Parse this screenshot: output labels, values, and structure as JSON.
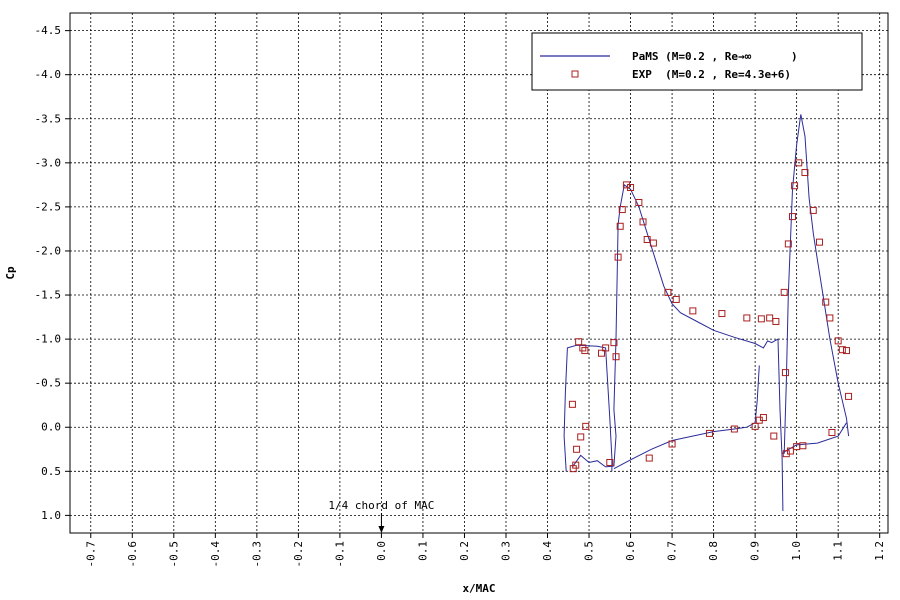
{
  "chart_data": {
    "type": "scatter",
    "xlabel": "x/MAC",
    "ylabel": "Cp",
    "xlim": [
      -0.75,
      1.22
    ],
    "ylim": [
      1.2,
      -4.7
    ],
    "y_axis_inverted": true,
    "grid": true,
    "legend_position": "top-right",
    "x_ticks": [
      -0.7,
      -0.6,
      -0.5,
      -0.4,
      -0.3,
      -0.2,
      -0.1,
      0.0,
      0.1,
      0.2,
      0.3,
      0.4,
      0.5,
      0.6,
      0.7,
      0.8,
      0.9,
      1.0,
      1.1,
      1.2
    ],
    "x_tick_labels": [
      "-0.7",
      "-0.6",
      "-0.5",
      "-0.4",
      "-0.3",
      "-0.2",
      "-0.1",
      "0.0",
      "0.1",
      "0.2",
      "0.3",
      "0.4",
      "0.5",
      "0.6",
      "0.7",
      "0.8",
      "0.9",
      "1.0",
      "1.1",
      "1.2"
    ],
    "y_ticks": [
      -4.5,
      -4.0,
      -3.5,
      -3.0,
      -2.5,
      -2.0,
      -1.5,
      -1.0,
      -0.5,
      0.0,
      0.5,
      1.0
    ],
    "y_tick_labels": [
      "-4.5",
      "-4.0",
      "-3.5",
      "-3.0",
      "-2.5",
      "-2.0",
      "-1.5",
      "-1.0",
      "-0.5",
      "0.0",
      "0.5",
      "1.0"
    ],
    "annotation": {
      "text": "1/4 chord of MAC",
      "x": 0.0,
      "y": 1.2
    },
    "series": [
      {
        "name": "PaMS (M=0.2 , Re→∞      )",
        "kind": "line",
        "color": "#2b2b9a",
        "segments": [
          [
            [
              0.445,
              0.5
            ],
            [
              0.44,
              0.1
            ],
            [
              0.443,
              -0.4
            ],
            [
              0.448,
              -0.9
            ],
            [
              0.47,
              -0.93
            ],
            [
              0.52,
              -0.92
            ],
            [
              0.54,
              -0.9
            ],
            [
              0.545,
              -0.5
            ],
            [
              0.55,
              -0.1
            ],
            [
              0.555,
              0.35
            ],
            [
              0.555,
              0.5
            ]
          ],
          [
            [
              0.46,
              0.45
            ],
            [
              0.48,
              0.32
            ],
            [
              0.5,
              0.4
            ],
            [
              0.52,
              0.38
            ],
            [
              0.54,
              0.45
            ],
            [
              0.56,
              0.44
            ],
            [
              0.565,
              0.1
            ],
            [
              0.56,
              -0.2
            ],
            [
              0.565,
              -1.0
            ],
            [
              0.57,
              -2.3
            ],
            [
              0.575,
              -2.5
            ],
            [
              0.585,
              -2.75
            ],
            [
              0.6,
              -2.7
            ],
            [
              0.62,
              -2.5
            ],
            [
              0.64,
              -2.2
            ],
            [
              0.66,
              -1.9
            ],
            [
              0.68,
              -1.6
            ],
            [
              0.7,
              -1.4
            ],
            [
              0.72,
              -1.3
            ],
            [
              0.76,
              -1.2
            ],
            [
              0.8,
              -1.1
            ],
            [
              0.85,
              -1.02
            ],
            [
              0.9,
              -0.95
            ],
            [
              0.92,
              -0.9
            ],
            [
              0.93,
              -0.98
            ],
            [
              0.94,
              -0.96
            ],
            [
              0.955,
              -1.0
            ],
            [
              0.96,
              -0.2
            ],
            [
              0.965,
              0.35
            ],
            [
              0.967,
              0.95
            ]
          ],
          [
            [
              0.56,
              0.47
            ],
            [
              0.6,
              0.37
            ],
            [
              0.65,
              0.25
            ],
            [
              0.7,
              0.15
            ],
            [
              0.8,
              0.05
            ],
            [
              0.85,
              0.02
            ],
            [
              0.88,
              0.0
            ],
            [
              0.9,
              -0.05
            ],
            [
              0.905,
              -0.3
            ],
            [
              0.91,
              -0.7
            ]
          ],
          [
            [
              0.97,
              0.3
            ],
            [
              0.975,
              -0.5
            ],
            [
              0.98,
              -1.5
            ],
            [
              0.985,
              -2.1
            ],
            [
              0.99,
              -2.7
            ],
            [
              1.0,
              -3.2
            ],
            [
              1.01,
              -3.55
            ],
            [
              1.02,
              -3.3
            ],
            [
              1.03,
              -2.6
            ],
            [
              1.04,
              -2.2
            ],
            [
              1.05,
              -1.9
            ],
            [
              1.06,
              -1.6
            ],
            [
              1.08,
              -1.0
            ],
            [
              1.1,
              -0.5
            ],
            [
              1.12,
              -0.1
            ],
            [
              1.125,
              0.1
            ]
          ],
          [
            [
              0.965,
              0.3
            ],
            [
              0.97,
              0.28
            ],
            [
              1.0,
              0.2
            ],
            [
              1.05,
              0.18
            ],
            [
              1.1,
              0.1
            ],
            [
              1.12,
              -0.05
            ]
          ]
        ]
      },
      {
        "name": "EXP  (M=0.2 , Re=4.3e+6)",
        "kind": "marker",
        "color": "#aa1f1f",
        "points": [
          [
            0.46,
            -0.26
          ],
          [
            0.462,
            0.47
          ],
          [
            0.468,
            0.43
          ],
          [
            0.47,
            0.25
          ],
          [
            0.475,
            -0.97
          ],
          [
            0.48,
            0.11
          ],
          [
            0.485,
            -0.9
          ],
          [
            0.49,
            -0.87
          ],
          [
            0.492,
            -0.01
          ],
          [
            0.53,
            -0.84
          ],
          [
            0.54,
            -0.9
          ],
          [
            0.55,
            0.4
          ],
          [
            0.56,
            -0.96
          ],
          [
            0.565,
            -0.8
          ],
          [
            0.57,
            -1.93
          ],
          [
            0.575,
            -2.28
          ],
          [
            0.58,
            -2.47
          ],
          [
            0.59,
            -2.75
          ],
          [
            0.6,
            -2.72
          ],
          [
            0.62,
            -2.55
          ],
          [
            0.63,
            -2.33
          ],
          [
            0.64,
            -2.13
          ],
          [
            0.645,
            0.35
          ],
          [
            0.655,
            -2.09
          ],
          [
            0.69,
            -1.53
          ],
          [
            0.7,
            0.19
          ],
          [
            0.71,
            -1.45
          ],
          [
            0.75,
            -1.32
          ],
          [
            0.79,
            0.07
          ],
          [
            0.82,
            -1.29
          ],
          [
            0.85,
            0.02
          ],
          [
            0.88,
            -1.24
          ],
          [
            0.9,
            -0.01
          ],
          [
            0.91,
            -0.08
          ],
          [
            0.915,
            -1.23
          ],
          [
            0.92,
            -0.11
          ],
          [
            0.935,
            -1.24
          ],
          [
            0.945,
            0.1
          ],
          [
            0.95,
            -1.2
          ],
          [
            0.97,
            -1.53
          ],
          [
            0.973,
            -0.62
          ],
          [
            0.975,
            0.3
          ],
          [
            0.98,
            -2.08
          ],
          [
            0.985,
            0.27
          ],
          [
            0.99,
            -2.39
          ],
          [
            0.995,
            -2.74
          ],
          [
            1.0,
            0.22
          ],
          [
            1.005,
            -3.0
          ],
          [
            1.015,
            0.21
          ],
          [
            1.02,
            -2.89
          ],
          [
            1.04,
            -2.46
          ],
          [
            1.055,
            -2.1
          ],
          [
            1.07,
            -1.42
          ],
          [
            1.08,
            -1.24
          ],
          [
            1.085,
            0.06
          ],
          [
            1.1,
            -0.98
          ],
          [
            1.11,
            -0.88
          ],
          [
            1.12,
            -0.87
          ],
          [
            1.125,
            -0.35
          ]
        ]
      }
    ]
  }
}
